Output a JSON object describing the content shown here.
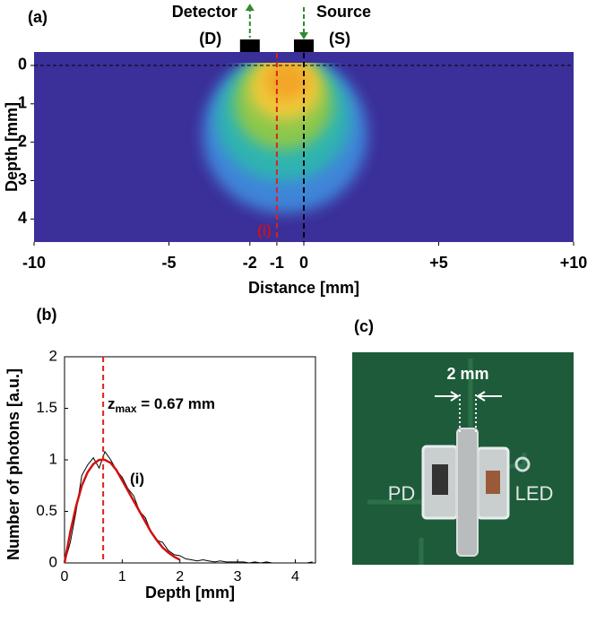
{
  "chart_data": [
    {
      "type": "heatmap",
      "panel": "(a)",
      "xlabel": "Distance [mm]",
      "ylabel": "Depth [mm]",
      "xlim": [
        -10,
        10
      ],
      "ylim": [
        -0.35,
        4.6
      ],
      "y_inverted": true,
      "xticks": [
        -10,
        -5,
        -2,
        -1,
        0,
        {
          "value": 5,
          "label": "+5"
        },
        {
          "value": 10,
          "label": "+10"
        }
      ],
      "yticks": [
        0,
        1,
        2,
        3,
        4
      ],
      "background": "#3b2f99",
      "vlines": [
        {
          "x": -1,
          "color": "#e0201b"
        },
        {
          "x": 0,
          "color": "#000000"
        }
      ],
      "hline": 0,
      "annotation": {
        "text": "(i)",
        "color": "#c0142a"
      },
      "probes": [
        {
          "name": "Detector",
          "label": "(D)",
          "x": -2,
          "direction": "out"
        },
        {
          "name": "Source",
          "label": "(S)",
          "x": 0,
          "direction": "in"
        }
      ]
    },
    {
      "type": "line",
      "panel": "(b)",
      "xlabel": "Depth [mm]",
      "ylabel": "Number of photons [a.u.]",
      "xlim": [
        0,
        4.35
      ],
      "ylim": [
        0,
        2
      ],
      "xticks": [
        0,
        1,
        2,
        3,
        4
      ],
      "yticks": [
        0,
        0.5,
        1,
        1.5,
        2
      ],
      "x": [
        0,
        0.1,
        0.2,
        0.3,
        0.4,
        0.5,
        0.6,
        0.7,
        0.8,
        0.9,
        1,
        1.1,
        1.2,
        1.3,
        1.4,
        1.5,
        1.6,
        1.7,
        1.8,
        1.9,
        2,
        2.1,
        2.2,
        2.3,
        2.4,
        2.5,
        2.6,
        2.7,
        2.8,
        2.9,
        3,
        3.1,
        3.2,
        3.3,
        3.4,
        3.5,
        3.6,
        3.7,
        3.8,
        3.9,
        4,
        4.1,
        4.2,
        4.3
      ],
      "series": [
        {
          "color": "#000000",
          "values": [
            0,
            0.2,
            0.5,
            0.85,
            0.95,
            1.02,
            0.92,
            1.08,
            1,
            0.9,
            0.83,
            0.72,
            0.65,
            0.5,
            0.44,
            0.3,
            0.22,
            0.2,
            0.12,
            0.08,
            0.07,
            0.04,
            0.03,
            0.02,
            0.03,
            0.02,
            0.01,
            0.02,
            0.01,
            0.01,
            0.01,
            0.01,
            0,
            0.01,
            0,
            0.01,
            0,
            0,
            0,
            0,
            0,
            0,
            0,
            0.01
          ]
        },
        {
          "color": "#d01010",
          "values": [
            0,
            0.3,
            0.55,
            0.75,
            0.88,
            0.96,
            1,
            1,
            0.97,
            0.9,
            0.8,
            0.7,
            0.6,
            0.5,
            0.4,
            0.3,
            0.22,
            0.15,
            0.1,
            0.06,
            0.03,
            null,
            null,
            null,
            null,
            null,
            null,
            null,
            null,
            null,
            null,
            null,
            null,
            null,
            null,
            null,
            null,
            null,
            null,
            null,
            null,
            null,
            null,
            null
          ]
        }
      ],
      "vline": {
        "x": 0.67,
        "color": "#e0201b"
      },
      "zmax": {
        "symbol": "z",
        "subscript": "max",
        "rest": " = 0.67 mm"
      },
      "annotation": "(i)"
    },
    {
      "type": "image",
      "panel": "(c)",
      "scale_label": "2 mm",
      "labels": [
        "PD",
        "LED"
      ]
    }
  ]
}
